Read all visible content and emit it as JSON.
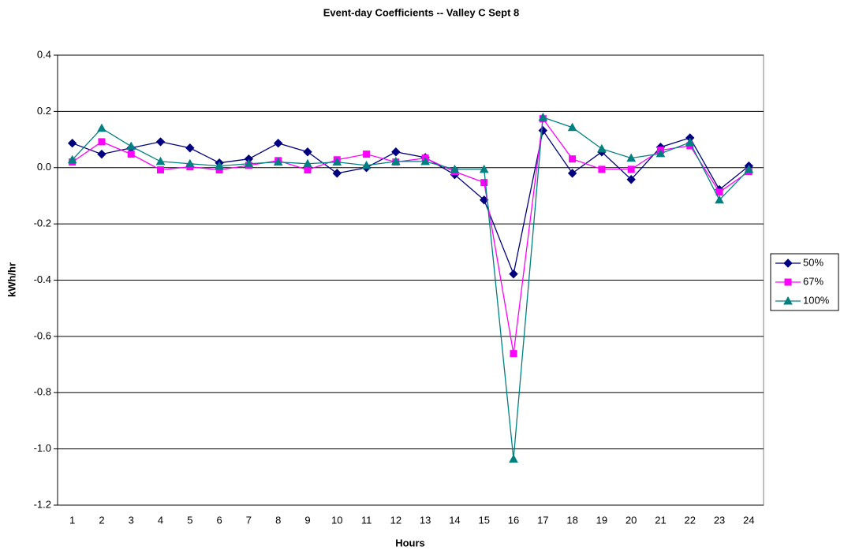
{
  "chart_data": {
    "type": "line",
    "title": "Event-day Coefficients -- Valley C Sept 8",
    "x_label": "Hours",
    "y_label": "kWh/hr",
    "categories": [
      "1",
      "2",
      "3",
      "4",
      "5",
      "6",
      "7",
      "8",
      "9",
      "10",
      "11",
      "12",
      "13",
      "14",
      "15",
      "16",
      "17",
      "18",
      "19",
      "20",
      "21",
      "22",
      "23",
      "24"
    ],
    "series": [
      {
        "name": "50%",
        "color": "#000080",
        "marker": "diamond",
        "values": [
          0.087,
          0.048,
          0.07,
          0.092,
          0.07,
          0.017,
          0.031,
          0.087,
          0.056,
          -0.02,
          0.0,
          0.056,
          0.036,
          -0.025,
          -0.115,
          -0.378,
          0.132,
          -0.02,
          0.056,
          -0.042,
          0.073,
          0.106,
          -0.078,
          0.006
        ]
      },
      {
        "name": "67%",
        "color": "#ff00ff",
        "marker": "square",
        "values": [
          0.02,
          0.092,
          0.048,
          -0.008,
          0.003,
          -0.008,
          0.008,
          0.025,
          -0.008,
          0.028,
          0.048,
          0.02,
          0.034,
          -0.014,
          -0.053,
          -0.661,
          0.174,
          0.031,
          -0.006,
          -0.006,
          0.062,
          0.078,
          -0.087,
          -0.014
        ]
      },
      {
        "name": "100%",
        "color": "#008080",
        "marker": "triangle",
        "values": [
          0.028,
          0.14,
          0.076,
          0.022,
          0.014,
          0.006,
          0.014,
          0.02,
          0.014,
          0.02,
          0.008,
          0.022,
          0.022,
          -0.006,
          -0.006,
          -1.036,
          0.179,
          0.143,
          0.067,
          0.034,
          0.05,
          0.09,
          -0.115,
          -0.006
        ]
      }
    ],
    "ylim": [
      -1.2,
      0.4
    ],
    "yticks": [
      -1.2,
      {
        "value": -1,
        "label": "-1.0"
      },
      -0.8,
      -0.6,
      -0.4,
      -0.2,
      {
        "value": 0,
        "label": "0.0"
      },
      0.2,
      0.4
    ],
    "grid": true,
    "legend": "right"
  }
}
